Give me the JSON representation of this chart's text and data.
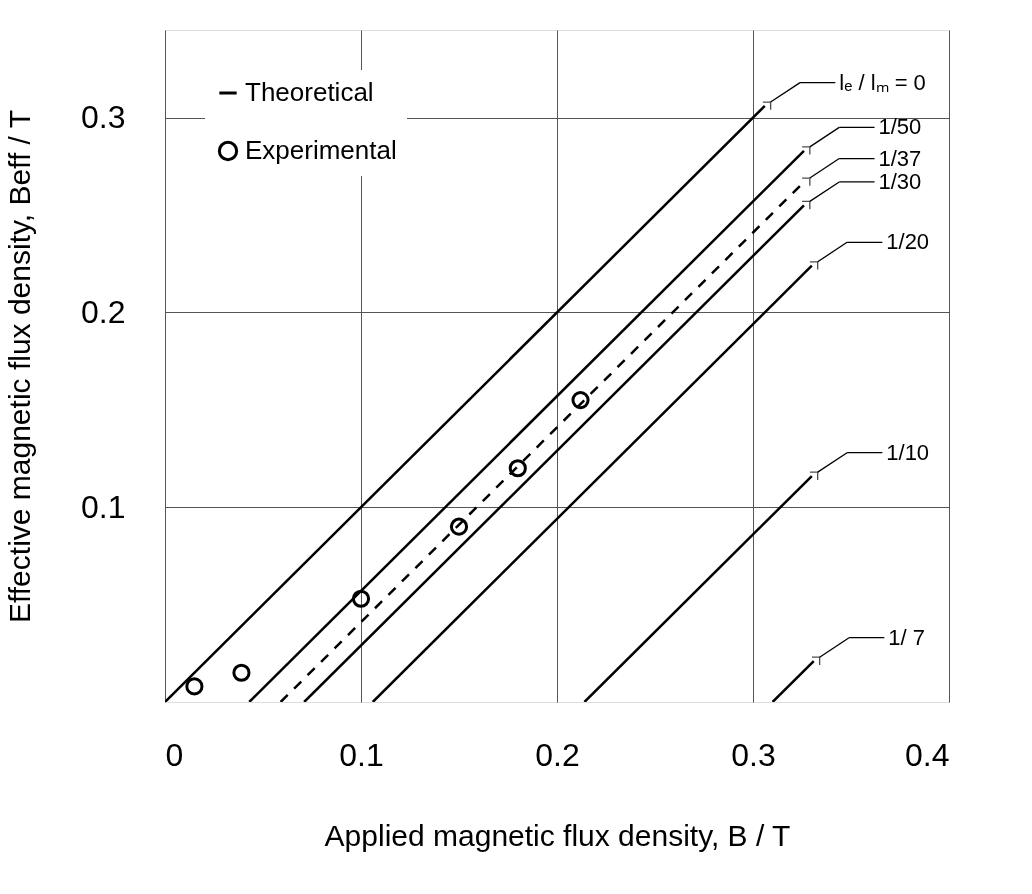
{
  "chart_data": {
    "type": "line",
    "xlabel": "Applied magnetic flux density,  B / T",
    "ylabel": "Effective magnetic flux density,  Beff / T",
    "xlim": [
      0,
      0.4
    ],
    "ylim": [
      0,
      0.345
    ],
    "xticks": [
      0,
      0.1,
      0.2,
      0.3,
      0.4
    ],
    "yticks": [
      0.1,
      0.2,
      0.3
    ],
    "grid": true,
    "legend": "top left",
    "annotations": [
      "Theoretical"
    ],
    "series": [
      {
        "name": "lₑ / lₘ = 0",
        "color": "#000000",
        "x": [
          0,
          0.306
        ],
        "values": [
          0,
          0.306
        ],
        "line_style": "solid"
      },
      {
        "name": "1/50",
        "color": "#000000",
        "x": [
          0.043,
          0.326
        ],
        "values": [
          0,
          0.283
        ],
        "line_style": "solid"
      },
      {
        "name": "1/37",
        "color": "#000000",
        "x": [
          0.059,
          0.326
        ],
        "values": [
          0,
          0.267
        ],
        "line_style": "dashed"
      },
      {
        "name": "1/30",
        "color": "#000000",
        "x": [
          0.071,
          0.326
        ],
        "values": [
          0,
          0.255
        ],
        "line_style": "solid"
      },
      {
        "name": "1/20",
        "color": "#000000",
        "x": [
          0.106,
          0.33
        ],
        "values": [
          0,
          0.224
        ],
        "line_style": "solid"
      },
      {
        "name": "1/10",
        "color": "#000000",
        "x": [
          0.214,
          0.33
        ],
        "values": [
          0,
          0.116
        ],
        "line_style": "solid"
      },
      {
        "name": "1/ 7",
        "color": "#000000",
        "x": [
          0.31,
          0.331
        ],
        "values": [
          0,
          0.021
        ],
        "line_style": "solid"
      },
      {
        "name": "Experimental",
        "type": "scatter",
        "marker": "circle",
        "color": "#000000",
        "x": [
          0.015,
          0.039,
          0.1,
          0.15,
          0.18,
          0.212
        ],
        "values": [
          0.008,
          0.015,
          0.053,
          0.09,
          0.12,
          0.155
        ]
      }
    ]
  }
}
